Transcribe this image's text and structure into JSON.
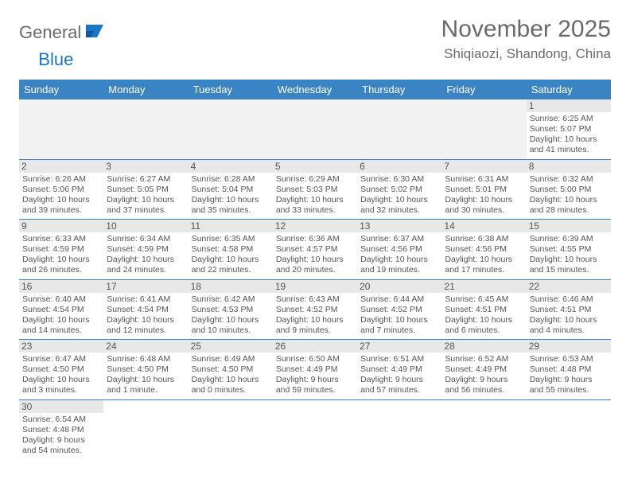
{
  "brand": {
    "part1": "General",
    "part2": "Blue"
  },
  "title": "November 2025",
  "location": "Shiqiaozi, Shandong, China",
  "colors": {
    "header_bg": "#3b84c4",
    "header_text": "#ffffff",
    "daynum_bg": "#e8e8e8",
    "border": "#3b84c4",
    "text": "#555555",
    "brand_grey": "#6a6a6a",
    "brand_blue": "#1976c5"
  },
  "weekdays": [
    "Sunday",
    "Monday",
    "Tuesday",
    "Wednesday",
    "Thursday",
    "Friday",
    "Saturday"
  ],
  "first_weekday_index": 6,
  "days": [
    {
      "n": 1,
      "sunrise": "6:25 AM",
      "sunset": "5:07 PM",
      "daylight": "10 hours and 41 minutes."
    },
    {
      "n": 2,
      "sunrise": "6:26 AM",
      "sunset": "5:06 PM",
      "daylight": "10 hours and 39 minutes."
    },
    {
      "n": 3,
      "sunrise": "6:27 AM",
      "sunset": "5:05 PM",
      "daylight": "10 hours and 37 minutes."
    },
    {
      "n": 4,
      "sunrise": "6:28 AM",
      "sunset": "5:04 PM",
      "daylight": "10 hours and 35 minutes."
    },
    {
      "n": 5,
      "sunrise": "6:29 AM",
      "sunset": "5:03 PM",
      "daylight": "10 hours and 33 minutes."
    },
    {
      "n": 6,
      "sunrise": "6:30 AM",
      "sunset": "5:02 PM",
      "daylight": "10 hours and 32 minutes."
    },
    {
      "n": 7,
      "sunrise": "6:31 AM",
      "sunset": "5:01 PM",
      "daylight": "10 hours and 30 minutes."
    },
    {
      "n": 8,
      "sunrise": "6:32 AM",
      "sunset": "5:00 PM",
      "daylight": "10 hours and 28 minutes."
    },
    {
      "n": 9,
      "sunrise": "6:33 AM",
      "sunset": "4:59 PM",
      "daylight": "10 hours and 26 minutes."
    },
    {
      "n": 10,
      "sunrise": "6:34 AM",
      "sunset": "4:59 PM",
      "daylight": "10 hours and 24 minutes."
    },
    {
      "n": 11,
      "sunrise": "6:35 AM",
      "sunset": "4:58 PM",
      "daylight": "10 hours and 22 minutes."
    },
    {
      "n": 12,
      "sunrise": "6:36 AM",
      "sunset": "4:57 PM",
      "daylight": "10 hours and 20 minutes."
    },
    {
      "n": 13,
      "sunrise": "6:37 AM",
      "sunset": "4:56 PM",
      "daylight": "10 hours and 19 minutes."
    },
    {
      "n": 14,
      "sunrise": "6:38 AM",
      "sunset": "4:56 PM",
      "daylight": "10 hours and 17 minutes."
    },
    {
      "n": 15,
      "sunrise": "6:39 AM",
      "sunset": "4:55 PM",
      "daylight": "10 hours and 15 minutes."
    },
    {
      "n": 16,
      "sunrise": "6:40 AM",
      "sunset": "4:54 PM",
      "daylight": "10 hours and 14 minutes."
    },
    {
      "n": 17,
      "sunrise": "6:41 AM",
      "sunset": "4:54 PM",
      "daylight": "10 hours and 12 minutes."
    },
    {
      "n": 18,
      "sunrise": "6:42 AM",
      "sunset": "4:53 PM",
      "daylight": "10 hours and 10 minutes."
    },
    {
      "n": 19,
      "sunrise": "6:43 AM",
      "sunset": "4:52 PM",
      "daylight": "10 hours and 9 minutes."
    },
    {
      "n": 20,
      "sunrise": "6:44 AM",
      "sunset": "4:52 PM",
      "daylight": "10 hours and 7 minutes."
    },
    {
      "n": 21,
      "sunrise": "6:45 AM",
      "sunset": "4:51 PM",
      "daylight": "10 hours and 6 minutes."
    },
    {
      "n": 22,
      "sunrise": "6:46 AM",
      "sunset": "4:51 PM",
      "daylight": "10 hours and 4 minutes."
    },
    {
      "n": 23,
      "sunrise": "6:47 AM",
      "sunset": "4:50 PM",
      "daylight": "10 hours and 3 minutes."
    },
    {
      "n": 24,
      "sunrise": "6:48 AM",
      "sunset": "4:50 PM",
      "daylight": "10 hours and 1 minute."
    },
    {
      "n": 25,
      "sunrise": "6:49 AM",
      "sunset": "4:50 PM",
      "daylight": "10 hours and 0 minutes."
    },
    {
      "n": 26,
      "sunrise": "6:50 AM",
      "sunset": "4:49 PM",
      "daylight": "9 hours and 59 minutes."
    },
    {
      "n": 27,
      "sunrise": "6:51 AM",
      "sunset": "4:49 PM",
      "daylight": "9 hours and 57 minutes."
    },
    {
      "n": 28,
      "sunrise": "6:52 AM",
      "sunset": "4:49 PM",
      "daylight": "9 hours and 56 minutes."
    },
    {
      "n": 29,
      "sunrise": "6:53 AM",
      "sunset": "4:48 PM",
      "daylight": "9 hours and 55 minutes."
    },
    {
      "n": 30,
      "sunrise": "6:54 AM",
      "sunset": "4:48 PM",
      "daylight": "9 hours and 54 minutes."
    }
  ],
  "labels": {
    "sunrise": "Sunrise:",
    "sunset": "Sunset:",
    "daylight": "Daylight:"
  }
}
